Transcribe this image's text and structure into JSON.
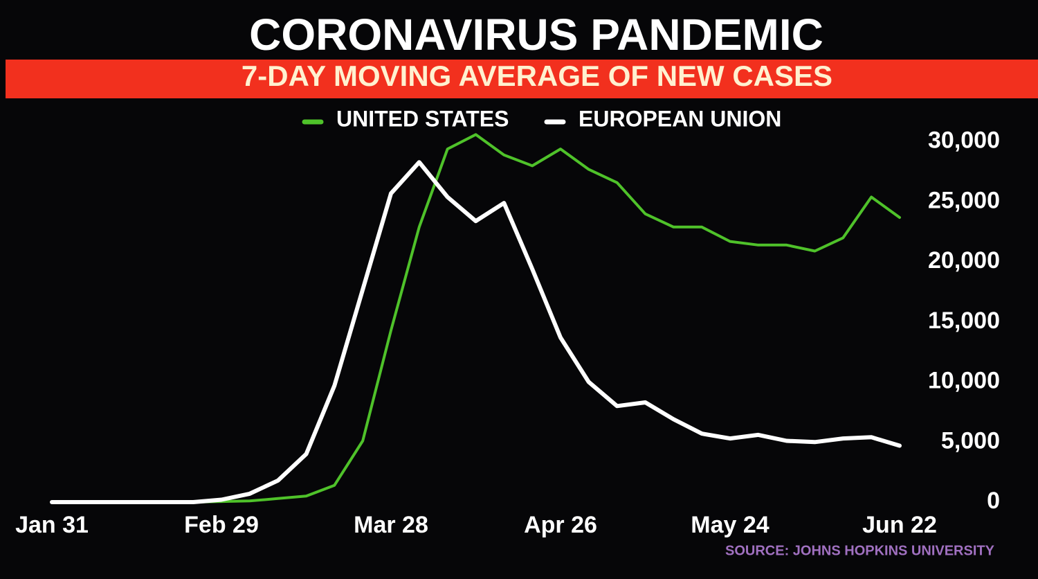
{
  "chart_data": {
    "type": "line",
    "title": "CORONAVIRUS PANDEMIC",
    "subtitle": "7-DAY MOVING AVERAGE OF NEW CASES",
    "source": "SOURCE: JOHNS HOPKINS UNIVERSITY",
    "categories": [
      "Jan 31",
      null,
      null,
      null,
      null,
      null,
      "Feb 29",
      null,
      null,
      null,
      null,
      null,
      "Mar 28",
      null,
      null,
      null,
      null,
      null,
      "Apr 26",
      null,
      null,
      null,
      null,
      null,
      "May 24",
      null,
      null,
      null,
      null,
      null,
      "Jun 22"
    ],
    "series": [
      {
        "name": "UNITED STATES",
        "color": "#4fc22a",
        "values": [
          0,
          0,
          0,
          0,
          0,
          0,
          50,
          100,
          300,
          500,
          1400,
          5100,
          14300,
          22900,
          29400,
          30600,
          28900,
          28000,
          29400,
          27700,
          26600,
          24000,
          22900,
          22900,
          21700,
          21400,
          21400,
          20900,
          22000,
          25400,
          23700
        ]
      },
      {
        "name": "EUROPEAN UNION",
        "color": "#ffffff",
        "values": [
          0,
          0,
          0,
          0,
          0,
          0,
          200,
          700,
          1800,
          4000,
          9700,
          17700,
          25700,
          28300,
          25400,
          23400,
          24900,
          19400,
          13700,
          10000,
          8000,
          8300,
          6900,
          5700,
          5300,
          5600,
          5100,
          5000,
          5300,
          5400,
          4700
        ]
      }
    ],
    "ylim": [
      0,
      32000
    ],
    "yticks": [
      0,
      {
        "value": 5000,
        "label": "5,000"
      },
      {
        "value": 10000,
        "label": "10,000"
      },
      {
        "value": 15000,
        "label": "15,000"
      },
      {
        "value": 20000,
        "label": "20,000"
      },
      {
        "value": 25000,
        "label": "25,000"
      },
      {
        "value": 30000,
        "label": "30,000"
      }
    ],
    "grid": false
  }
}
